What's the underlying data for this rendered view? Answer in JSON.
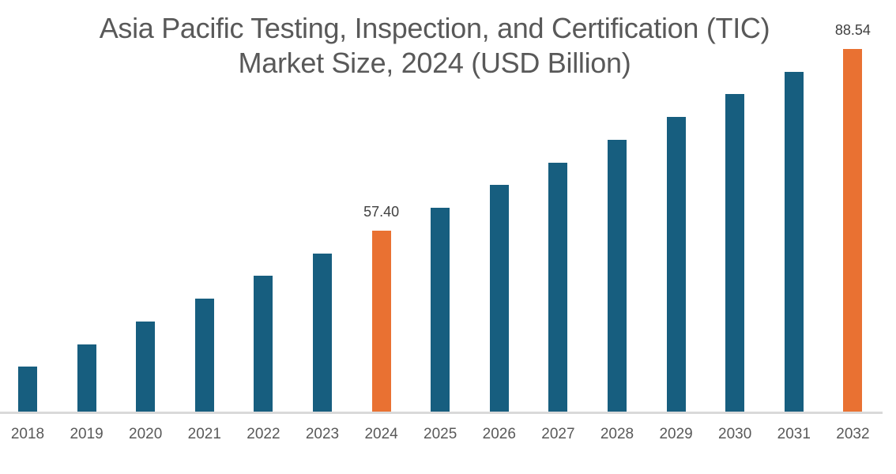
{
  "title": {
    "line1": "Asia Pacific Testing, Inspection, and Certification (TIC)",
    "line2": "Market Size, 2024 (USD Billion)"
  },
  "colors": {
    "primary": "#175E7F",
    "highlight": "#E97132",
    "axis": "#D9D9D9",
    "text": "#595959"
  },
  "chart_data": {
    "type": "bar",
    "title": "Asia Pacific Testing, Inspection, and Certification (TIC) Market Size, 2024 (USD Billion)",
    "xlabel": "",
    "ylabel": "",
    "grid": false,
    "legend": null,
    "categories": [
      "2018",
      "2019",
      "2020",
      "2021",
      "2022",
      "2023",
      "2024",
      "2025",
      "2026",
      "2027",
      "2028",
      "2029",
      "2030",
      "2031",
      "2032"
    ],
    "values": [
      34.05,
      37.94,
      41.83,
      45.72,
      49.62,
      53.51,
      57.4,
      61.29,
      65.19,
      69.08,
      72.97,
      76.86,
      80.76,
      84.65,
      88.54
    ],
    "highlighted": [
      "2024",
      "2032"
    ],
    "data_labels": {
      "2024": "57.40",
      "2032": "88.54"
    }
  }
}
